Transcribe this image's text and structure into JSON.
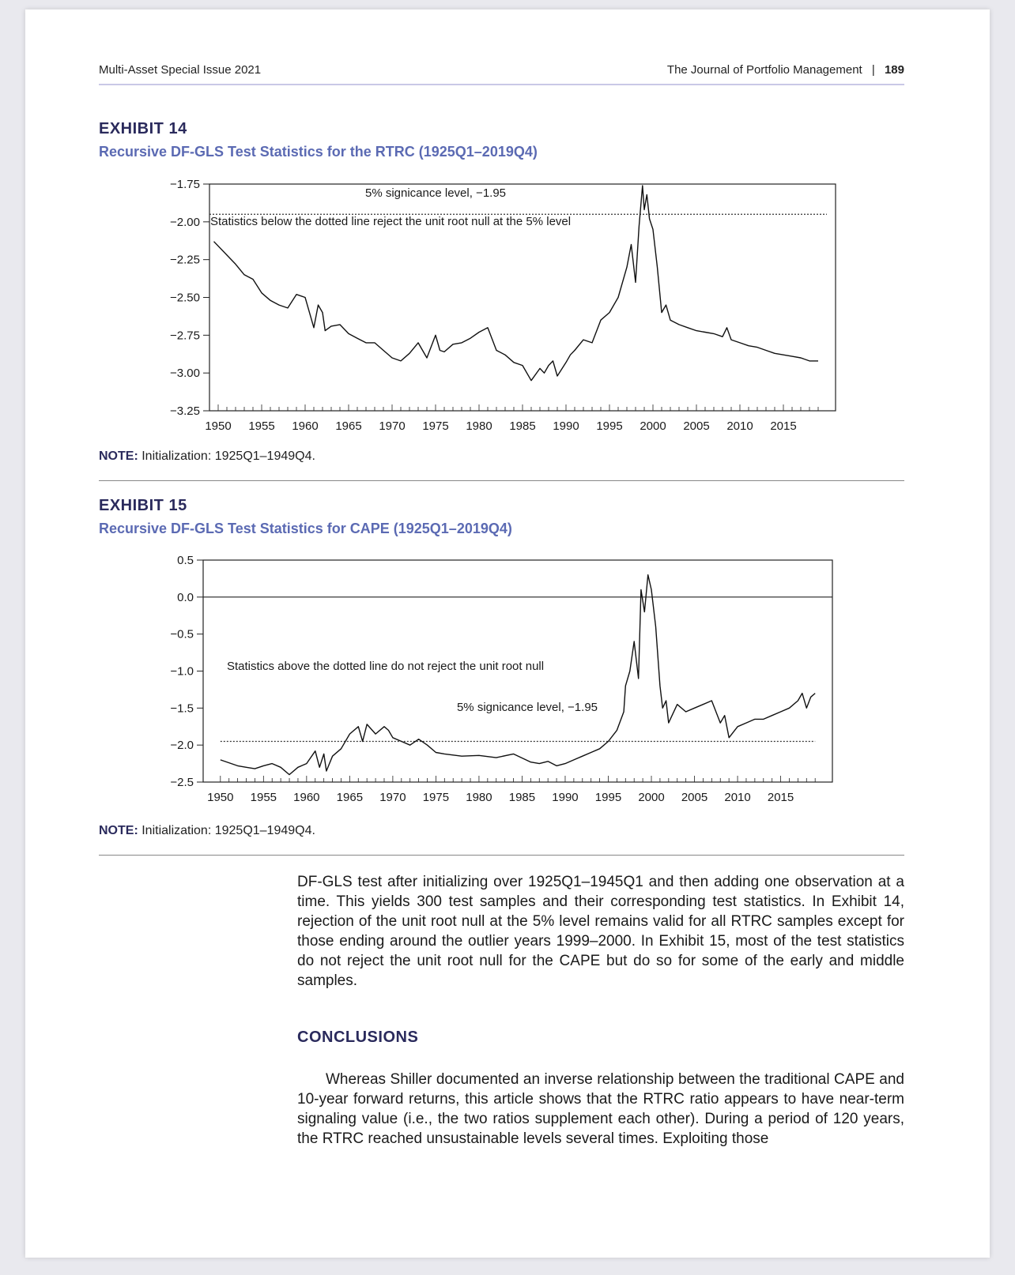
{
  "header": {
    "left": "Multi-Asset Special Issue 2021",
    "right_journal": "The Journal of Portfolio Management",
    "separator": "|",
    "page_number": "189"
  },
  "exhibit14": {
    "label": "EXHIBIT 14",
    "title": "Recursive DF-GLS Test Statistics for the RTRC (1925Q1–2019Q4)",
    "note_label": "NOTE:",
    "note_text": " Initialization: 1925Q1–1949Q4."
  },
  "exhibit15": {
    "label": "EXHIBIT 15",
    "title": "Recursive DF-GLS Test Statistics for CAPE (1925Q1–2019Q4)",
    "note_label": "NOTE:",
    "note_text": " Initialization: 1925Q1–1949Q4."
  },
  "body": {
    "paragraph1": "DF-GLS test after initializing over 1925Q1–1945Q1 and then adding one observation at a time. This yields 300 test samples and their corresponding test statistics. In Exhibit 14, rejection of the unit root null at the 5% level remains valid for all RTRC samples except for those ending around the outlier years 1999–2000. In Exhibit 15, most of the test statistics do not reject the unit root null for the CAPE but do so for some of the early and middle samples.",
    "conclusions_heading": "CONCLUSIONS",
    "paragraph2": "Whereas Shiller documented an inverse relationship between the traditional CAPE and 10-year forward returns, this article shows that the RTRC ratio appears to have near-term signaling value (i.e., the two ratios supplement each other). During a period of 120 years, the RTRC reached unsustainable levels several times. Exploiting those"
  },
  "chart_data": [
    {
      "type": "line",
      "x_ticks": [
        1950,
        1955,
        1960,
        1965,
        1970,
        1975,
        1980,
        1985,
        1990,
        1995,
        2000,
        2005,
        2010,
        2015
      ],
      "y_ticks": [
        "−1.75",
        "−2.00",
        "−2.25",
        "−2.50",
        "−2.75",
        "−3.00",
        "−3.25"
      ],
      "ylim": [
        -3.25,
        -1.75
      ],
      "xlim": [
        1949,
        2021
      ],
      "reference_line": {
        "value": -1.95,
        "style": "dotted"
      },
      "annotations": [
        "5% signicance level, −1.95",
        "Statistics below the dotted line reject the unit root null at the 5% level"
      ],
      "series": [
        {
          "x": [
            1949.5,
            1951,
            1952,
            1953,
            1954,
            1955,
            1956,
            1957,
            1958,
            1959,
            1960,
            1961,
            1961.5,
            1962,
            1962.3,
            1963,
            1964,
            1965,
            1966,
            1967,
            1968,
            1969,
            1970,
            1971,
            1972,
            1973,
            1974,
            1975,
            1975.5,
            1976,
            1977,
            1978,
            1979,
            1980,
            1981,
            1982,
            1983,
            1984,
            1985,
            1986,
            1987,
            1987.5,
            1988,
            1988.5,
            1989,
            1990,
            1990.5,
            1991,
            1992,
            1993,
            1994,
            1995,
            1996,
            1997,
            1997.5,
            1998,
            1998.4,
            1998.8,
            1999,
            1999.3,
            1999.6,
            2000,
            2000.5,
            2001,
            2001.5,
            2002,
            2003,
            2004,
            2005,
            2006,
            2007,
            2008,
            2008.5,
            2009,
            2010,
            2011,
            2012,
            2013,
            2014,
            2015,
            2016,
            2017,
            2018,
            2019
          ],
          "y": [
            -2.13,
            -2.22,
            -2.28,
            -2.35,
            -2.38,
            -2.47,
            -2.52,
            -2.55,
            -2.57,
            -2.48,
            -2.5,
            -2.7,
            -2.55,
            -2.6,
            -2.72,
            -2.69,
            -2.68,
            -2.74,
            -2.77,
            -2.8,
            -2.8,
            -2.85,
            -2.9,
            -2.92,
            -2.87,
            -2.8,
            -2.9,
            -2.75,
            -2.85,
            -2.86,
            -2.81,
            -2.8,
            -2.77,
            -2.73,
            -2.7,
            -2.85,
            -2.88,
            -2.93,
            -2.95,
            -3.05,
            -2.97,
            -3.0,
            -2.95,
            -2.92,
            -3.02,
            -2.93,
            -2.88,
            -2.85,
            -2.78,
            -2.8,
            -2.65,
            -2.6,
            -2.5,
            -2.3,
            -2.15,
            -2.4,
            -2.03,
            -1.76,
            -1.92,
            -1.82,
            -1.98,
            -2.05,
            -2.3,
            -2.6,
            -2.55,
            -2.65,
            -2.68,
            -2.7,
            -2.72,
            -2.73,
            -2.74,
            -2.76,
            -2.7,
            -2.78,
            -2.8,
            -2.82,
            -2.83,
            -2.85,
            -2.87,
            -2.88,
            -2.89,
            -2.9,
            -2.92,
            -2.92
          ]
        }
      ]
    },
    {
      "type": "line",
      "x_ticks": [
        1950,
        1955,
        1960,
        1965,
        1970,
        1975,
        1980,
        1985,
        1990,
        1995,
        2000,
        2005,
        2010,
        2015
      ],
      "y_ticks": [
        "0.5",
        "0.0",
        "−0.5",
        "−1.0",
        "−1.5",
        "−2.0",
        "−2.5"
      ],
      "ylim": [
        -2.5,
        0.5
      ],
      "xlim": [
        1948,
        2021
      ],
      "reference_line": {
        "value": -1.95,
        "style": "dotted"
      },
      "zero_line": true,
      "annotations": [
        "Statistics above the dotted line do not reject the unit root null",
        "5% signicance level, −1.95"
      ],
      "series": [
        {
          "x": [
            1950,
            1952,
            1953,
            1954,
            1955,
            1956,
            1957,
            1958,
            1959,
            1960,
            1961,
            1961.5,
            1962,
            1962.3,
            1963,
            1964,
            1965,
            1966,
            1966.5,
            1967,
            1968,
            1969,
            1969.5,
            1970,
            1971,
            1972,
            1973,
            1974,
            1975,
            1976,
            1978,
            1980,
            1982,
            1984,
            1986,
            1987,
            1988,
            1989,
            1990,
            1991,
            1992,
            1993,
            1994,
            1995,
            1996,
            1996.8,
            1997,
            1997.5,
            1998,
            1998.5,
            1998.8,
            1999.2,
            1999.6,
            2000,
            2000.5,
            2001,
            2001.3,
            2001.7,
            2002,
            2003,
            2004,
            2005,
            2006,
            2007,
            2008,
            2008.5,
            2009,
            2010,
            2011,
            2012,
            2013,
            2014,
            2015,
            2016,
            2017,
            2017.5,
            2018,
            2018.5,
            2019
          ],
          "y": [
            -2.2,
            -2.28,
            -2.3,
            -2.32,
            -2.28,
            -2.25,
            -2.3,
            -2.4,
            -2.3,
            -2.25,
            -2.08,
            -2.3,
            -2.12,
            -2.35,
            -2.15,
            -2.05,
            -1.85,
            -1.75,
            -1.95,
            -1.72,
            -1.85,
            -1.75,
            -1.8,
            -1.9,
            -1.95,
            -2.0,
            -1.92,
            -2.0,
            -2.1,
            -2.12,
            -2.15,
            -2.14,
            -2.17,
            -2.12,
            -2.23,
            -2.25,
            -2.22,
            -2.28,
            -2.25,
            -2.2,
            -2.15,
            -2.1,
            -2.05,
            -1.95,
            -1.8,
            -1.55,
            -1.2,
            -1.0,
            -0.6,
            -1.1,
            0.1,
            -0.2,
            0.3,
            0.1,
            -0.4,
            -1.2,
            -1.5,
            -1.4,
            -1.7,
            -1.45,
            -1.55,
            -1.5,
            -1.45,
            -1.4,
            -1.7,
            -1.6,
            -1.9,
            -1.75,
            -1.7,
            -1.65,
            -1.65,
            -1.6,
            -1.55,
            -1.5,
            -1.4,
            -1.3,
            -1.5,
            -1.35,
            -1.3
          ]
        }
      ]
    }
  ]
}
